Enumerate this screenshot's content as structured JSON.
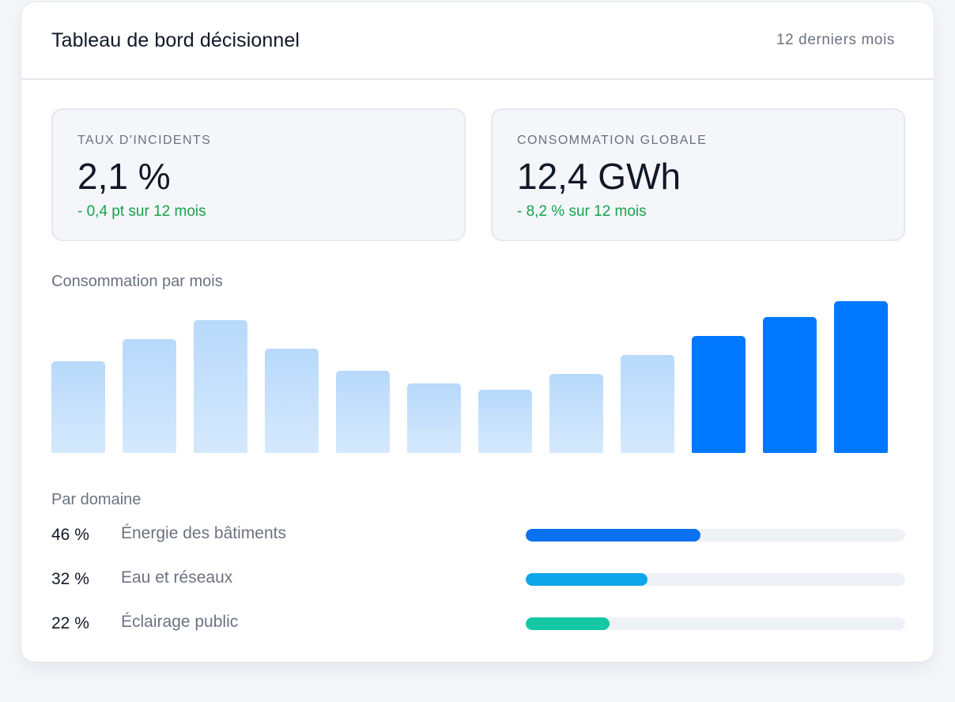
{
  "header": {
    "title": "Tableau de bord décisionnel",
    "period": "12 derniers mois"
  },
  "kpis": [
    {
      "label": "TAUX D'INCIDENTS",
      "value": "2,1 %",
      "delta": "- 0,4 pt sur 12 mois"
    },
    {
      "label": "CONSOMMATION GLOBALE",
      "value": "12,4 GWh",
      "delta": "- 8,2 % sur 12 mois"
    }
  ],
  "chart_section_label": "Consommation par mois",
  "chart_data": {
    "type": "bar",
    "values": [
      116,
      144,
      168,
      132,
      104,
      88,
      80,
      100,
      124,
      148,
      172,
      192
    ],
    "highlighted": [
      false,
      false,
      false,
      false,
      false,
      false,
      false,
      false,
      false,
      true,
      true,
      true
    ],
    "ylim": [
      0,
      192
    ],
    "colors": {
      "normal": "#b8d9fb",
      "highlight": "#0077ff"
    }
  },
  "domain_section_label": "Par domaine",
  "domains": [
    {
      "pct_label": "46 %",
      "name": "Énergie des bâtiments",
      "share": 0.46,
      "color": "#0a72f0"
    },
    {
      "pct_label": "32 %",
      "name": "Eau et réseaux",
      "share": 0.32,
      "color": "#0ea5e9"
    },
    {
      "pct_label": "22 %",
      "name": "Éclairage public",
      "share": 0.22,
      "color": "#14c8a4"
    }
  ]
}
